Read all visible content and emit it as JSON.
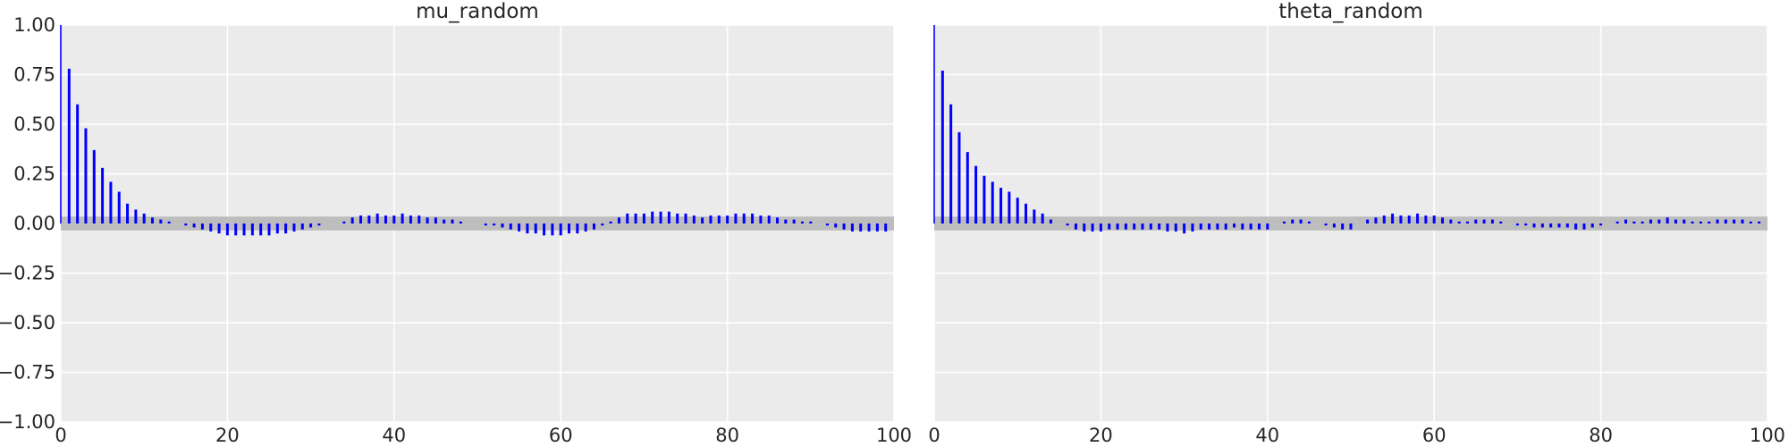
{
  "chart_data": [
    {
      "type": "bar",
      "title": "mu_random",
      "xlim": [
        0,
        100
      ],
      "ylim": [
        -1.0,
        1.0
      ],
      "xticks": [
        "0",
        "20",
        "40",
        "60",
        "80",
        "100"
      ],
      "yticks": [
        "1.00",
        "0.75",
        "0.50",
        "0.25",
        "0.00",
        "−0.25",
        "−0.50",
        "−0.75",
        "−1.00"
      ],
      "grid": true,
      "confidence_band": [
        -0.035,
        0.035
      ],
      "bar_color": "#0000ff",
      "band_color": "#bdbdbd",
      "lags": [
        0,
        1,
        2,
        3,
        4,
        5,
        6,
        7,
        8,
        9,
        10,
        11,
        12,
        13,
        14,
        15,
        16,
        17,
        18,
        19,
        20,
        21,
        22,
        23,
        24,
        25,
        26,
        27,
        28,
        29,
        30,
        31,
        32,
        33,
        34,
        35,
        36,
        37,
        38,
        39,
        40,
        41,
        42,
        43,
        44,
        45,
        46,
        47,
        48,
        49,
        50,
        51,
        52,
        53,
        54,
        55,
        56,
        57,
        58,
        59,
        60,
        61,
        62,
        63,
        64,
        65,
        66,
        67,
        68,
        69,
        70,
        71,
        72,
        73,
        74,
        75,
        76,
        77,
        78,
        79,
        80,
        81,
        82,
        83,
        84,
        85,
        86,
        87,
        88,
        89,
        90,
        91,
        92,
        93,
        94,
        95,
        96,
        97,
        98,
        99
      ],
      "values": [
        1.0,
        0.78,
        0.6,
        0.48,
        0.37,
        0.28,
        0.21,
        0.16,
        0.1,
        0.07,
        0.05,
        0.03,
        0.02,
        0.01,
        0.0,
        -0.01,
        -0.02,
        -0.03,
        -0.04,
        -0.05,
        -0.06,
        -0.06,
        -0.06,
        -0.06,
        -0.06,
        -0.06,
        -0.05,
        -0.05,
        -0.04,
        -0.03,
        -0.02,
        -0.01,
        0.0,
        0.0,
        0.01,
        0.03,
        0.04,
        0.04,
        0.05,
        0.04,
        0.04,
        0.05,
        0.04,
        0.04,
        0.03,
        0.03,
        0.02,
        0.02,
        0.01,
        0.0,
        0.0,
        -0.01,
        -0.01,
        -0.02,
        -0.03,
        -0.04,
        -0.05,
        -0.05,
        -0.06,
        -0.06,
        -0.06,
        -0.05,
        -0.05,
        -0.04,
        -0.03,
        -0.01,
        0.01,
        0.03,
        0.05,
        0.05,
        0.05,
        0.06,
        0.06,
        0.06,
        0.05,
        0.05,
        0.04,
        0.03,
        0.04,
        0.04,
        0.04,
        0.05,
        0.05,
        0.05,
        0.04,
        0.04,
        0.03,
        0.02,
        0.02,
        0.01,
        0.01,
        0.0,
        -0.01,
        -0.02,
        -0.03,
        -0.04,
        -0.04,
        -0.04,
        -0.04,
        -0.04
      ]
    },
    {
      "type": "bar",
      "title": "theta_random",
      "xlim": [
        0,
        100
      ],
      "ylim": [
        -1.0,
        1.0
      ],
      "xticks": [
        "0",
        "20",
        "40",
        "60",
        "80",
        "100"
      ],
      "yticks": [
        "1.00",
        "0.75",
        "0.50",
        "0.25",
        "0.00",
        "−0.25",
        "−0.50",
        "−0.75",
        "−1.00"
      ],
      "grid": true,
      "confidence_band": [
        -0.035,
        0.035
      ],
      "bar_color": "#0000ff",
      "band_color": "#bdbdbd",
      "lags": [
        0,
        1,
        2,
        3,
        4,
        5,
        6,
        7,
        8,
        9,
        10,
        11,
        12,
        13,
        14,
        15,
        16,
        17,
        18,
        19,
        20,
        21,
        22,
        23,
        24,
        25,
        26,
        27,
        28,
        29,
        30,
        31,
        32,
        33,
        34,
        35,
        36,
        37,
        38,
        39,
        40,
        41,
        42,
        43,
        44,
        45,
        46,
        47,
        48,
        49,
        50,
        51,
        52,
        53,
        54,
        55,
        56,
        57,
        58,
        59,
        60,
        61,
        62,
        63,
        64,
        65,
        66,
        67,
        68,
        69,
        70,
        71,
        72,
        73,
        74,
        75,
        76,
        77,
        78,
        79,
        80,
        81,
        82,
        83,
        84,
        85,
        86,
        87,
        88,
        89,
        90,
        91,
        92,
        93,
        94,
        95,
        96,
        97,
        98,
        99
      ],
      "values": [
        1.0,
        0.77,
        0.6,
        0.46,
        0.36,
        0.29,
        0.24,
        0.21,
        0.18,
        0.16,
        0.13,
        0.1,
        0.07,
        0.05,
        0.02,
        0.0,
        -0.01,
        -0.03,
        -0.04,
        -0.04,
        -0.04,
        -0.03,
        -0.03,
        -0.03,
        -0.03,
        -0.03,
        -0.03,
        -0.03,
        -0.04,
        -0.04,
        -0.05,
        -0.04,
        -0.03,
        -0.03,
        -0.03,
        -0.03,
        -0.02,
        -0.03,
        -0.03,
        -0.03,
        -0.03,
        0.0,
        0.01,
        0.02,
        0.02,
        0.01,
        0.0,
        -0.01,
        -0.02,
        -0.03,
        -0.03,
        0.0,
        0.02,
        0.03,
        0.04,
        0.05,
        0.04,
        0.04,
        0.05,
        0.04,
        0.04,
        0.03,
        0.02,
        0.01,
        0.01,
        0.02,
        0.02,
        0.02,
        0.01,
        0.0,
        -0.01,
        -0.01,
        -0.02,
        -0.02,
        -0.02,
        -0.02,
        -0.02,
        -0.03,
        -0.03,
        -0.02,
        -0.01,
        0.0,
        0.01,
        0.02,
        0.01,
        0.01,
        0.02,
        0.02,
        0.03,
        0.02,
        0.02,
        0.01,
        0.01,
        0.01,
        0.02,
        0.02,
        0.02,
        0.02,
        0.01,
        0.01
      ]
    }
  ]
}
